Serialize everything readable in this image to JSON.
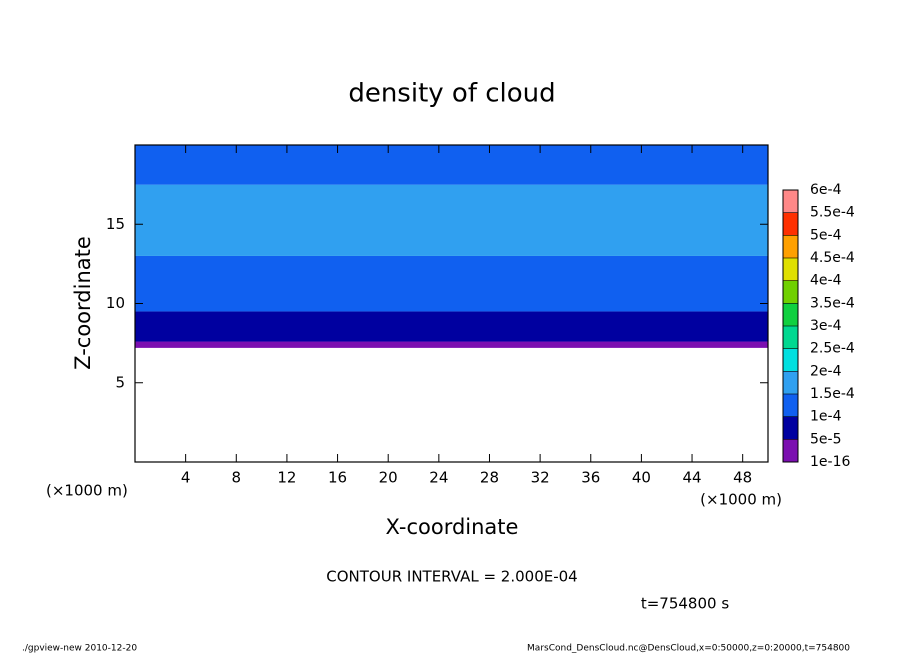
{
  "chart_data": {
    "type": "contour",
    "title": "density of cloud",
    "x_label": "X-coordinate",
    "y_label": "Z-coordinate",
    "x_unit_left": "(×1000 m)",
    "x_unit_right": "(×1000 m)",
    "xlim": [
      0,
      50
    ],
    "xticks": [
      4,
      8,
      12,
      16,
      20,
      24,
      28,
      32,
      36,
      40,
      44,
      48
    ],
    "ylim": [
      0,
      20
    ],
    "yticks": [
      5,
      10,
      15
    ],
    "z": [
      7.2,
      7.6,
      9.5,
      13,
      17.5
    ],
    "density": [
      3e-05,
      7e-05,
      0.00012,
      0.00016,
      0.00013
    ],
    "levels": [
      {
        "value": 1e-16,
        "label": "1e-16"
      },
      {
        "value": 5e-05,
        "label": "5e-5"
      },
      {
        "value": 0.0001,
        "label": "1e-4"
      },
      {
        "value": 0.00015,
        "label": "1.5e-4"
      },
      {
        "value": 0.0002,
        "label": "2e-4"
      },
      {
        "value": 0.00025,
        "label": "2.5e-4"
      },
      {
        "value": 0.0003,
        "label": "3e-4"
      },
      {
        "value": 0.00035,
        "label": "3.5e-4"
      },
      {
        "value": 0.0004,
        "label": "4e-4"
      },
      {
        "value": 0.00045,
        "label": "4.5e-4"
      },
      {
        "value": 0.0005,
        "label": "5e-4"
      },
      {
        "value": 0.00055,
        "label": "5.5e-4"
      },
      {
        "value": 0.0006,
        "label": "6e-4"
      }
    ],
    "colors": [
      "#7b0fb0",
      "#0000a0",
      "#1060f0",
      "#30a0f0",
      "#00e0e0",
      "#00d890",
      "#10d040",
      "#70d000",
      "#e0e000",
      "#ffa000",
      "#ff3000",
      "#ff8888"
    ],
    "contour_interval": "CONTOUR INTERVAL = 2.000E-04",
    "time": "t=754800 s",
    "footer_left": "./gpview-new  2010-12-20",
    "footer_right": "MarsCond_DensCloud.nc@DensCloud,x=0:50000,z=0:20000,t=754800"
  }
}
